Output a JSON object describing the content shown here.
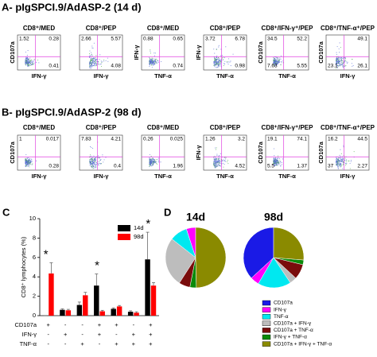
{
  "panels": {
    "a": {
      "title": "A- pIgSPCI.9/AdASP-2 (14 d)",
      "plots": [
        {
          "title": "CD8⁺/MED",
          "y_label": "CD107a",
          "x_label": "IFN-γ",
          "quadrants": [
            1.52,
            0.28,
            null,
            0.41
          ]
        },
        {
          "title": "CD8⁺/PEP",
          "x_label": "IFN-γ",
          "quadrants": [
            2.66,
            5.57,
            null,
            4.08
          ]
        },
        {
          "title": "CD8⁺/MED",
          "y_label": "IFN-γ",
          "x_label": "TNF-α",
          "quadrants": [
            0.88,
            0.65,
            null,
            0.74
          ]
        },
        {
          "title": "CD8⁺/PEP",
          "y_label": "IFN-γ",
          "x_label": "TNF-α",
          "quadrants": [
            3.72,
            6.78,
            null,
            0.98
          ]
        },
        {
          "title": "CD8⁺/IFN-γ⁺/PEP",
          "y_label": "CD107a",
          "x_label": "TNF-α",
          "quadrants": [
            34.5,
            52.2,
            7.63,
            5.55
          ]
        },
        {
          "title": "CD8⁺/TNF-α⁺/PEP",
          "y_label": "CD107a",
          "x_label": "IFN-γ",
          "quadrants": [
            null,
            49.1,
            23.1,
            26.1
          ]
        }
      ]
    },
    "b": {
      "title": "B- pIgSPCI.9/AdASP-2 (98 d)",
      "plots": [
        {
          "title": "CD8⁺/MED",
          "y_label": "CD107a",
          "x_label": "IFN-γ",
          "quadrants": [
            1,
            0.017,
            null,
            0.28
          ]
        },
        {
          "title": "CD8⁺/PEP",
          "x_label": "IFN-γ",
          "quadrants": [
            7.83,
            4.21,
            null,
            0.4
          ]
        },
        {
          "title": "CD8⁺/MED",
          "x_label": "TNF-α",
          "quadrants": [
            0.26,
            0.025,
            null,
            1.96
          ]
        },
        {
          "title": "CD8⁺/PEP",
          "y_label": "IFN-γ",
          "x_label": "TNF-α",
          "quadrants": [
            1.26,
            3.2,
            null,
            4.52
          ]
        },
        {
          "title": "CD8⁺/IFN-γ⁺/PEP",
          "y_label": "CD107a",
          "x_label": "TNF-α",
          "quadrants": [
            19.1,
            74.1,
            5.5,
            1.37
          ]
        },
        {
          "title": "CD8⁺/TNF-α⁺/PEP",
          "y_label": "CD107a",
          "x_label": "IFN-γ",
          "quadrants": [
            16.2,
            44.5,
            37,
            2.27
          ]
        }
      ]
    },
    "c_letter": "C",
    "d_letter": "D"
  },
  "chart_data": [
    {
      "type": "bar",
      "y_label": "CD8⁺ lymphocytes (%)",
      "category_rows": [
        {
          "name": "CD107a",
          "labels": [
            "+",
            "-",
            "-",
            "+",
            "+",
            "-",
            "+"
          ]
        },
        {
          "name": "IFN-γ",
          "labels": [
            "-",
            "+",
            "-",
            "+",
            "-",
            "+",
            "+"
          ]
        },
        {
          "name": "TNF-α",
          "labels": [
            "-",
            "-",
            "+",
            "-",
            "+",
            "+",
            "+"
          ]
        }
      ],
      "series": [
        {
          "name": "14d",
          "color": "#000000",
          "values": [
            0,
            0.6,
            1.1,
            3.1,
            0.7,
            0.4,
            5.8
          ],
          "errors": [
            0,
            0.1,
            0.3,
            1.2,
            0.1,
            0.1,
            2.8
          ]
        },
        {
          "name": "98d",
          "color": "#ff0000",
          "values": [
            4.35,
            0.55,
            2.1,
            0.45,
            0.95,
            0.3,
            3.1
          ],
          "errors": [
            1.1,
            0.1,
            0.3,
            0.1,
            0.1,
            0.1,
            0.3
          ]
        }
      ],
      "ylim": [
        0,
        10
      ],
      "yticks": [
        0,
        2,
        4,
        6,
        8,
        10
      ],
      "legend": "upper right",
      "annotations": [
        {
          "text": "*",
          "category": 0
        },
        {
          "text": "*",
          "category": 3
        },
        {
          "text": "*",
          "category": 6
        }
      ]
    },
    {
      "type": "pie",
      "title": "14d",
      "categories": [
        "CD107a",
        "IFN-γ",
        "TNF-α",
        "CD107a + IFN-γ",
        "CD107a + TNF-α",
        "IFN-γ + TNF-α",
        "CD107a + IFN-γ + TNF-α"
      ],
      "colors": [
        "#1a1ae6",
        "#ff00ff",
        "#00e8f0",
        "#bdbdbd",
        "#7a0c0c",
        "#0a8a0a",
        "#8a8a00"
      ],
      "values": [
        0,
        5,
        9.4,
        26.5,
        6,
        3.4,
        49.6
      ]
    },
    {
      "type": "pie",
      "title": "98d",
      "values": [
        36.9,
        4.7,
        17.8,
        3.8,
        8.1,
        2.5,
        26.3
      ]
    }
  ]
}
